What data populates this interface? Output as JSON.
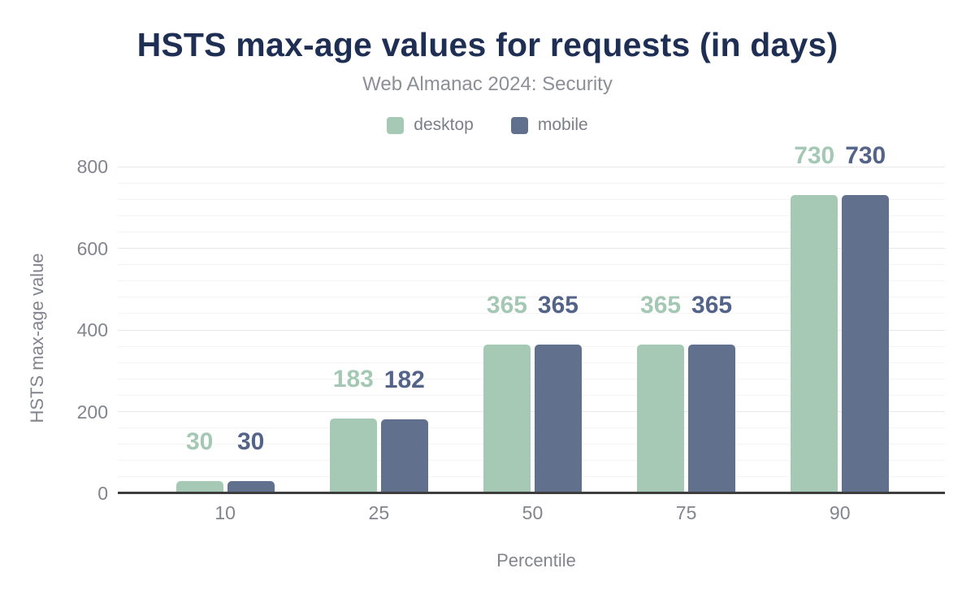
{
  "chart_data": {
    "type": "bar",
    "title": "HSTS max-age values for requests (in days)",
    "subtitle": "Web Almanac 2024: Security",
    "xlabel": "Percentile",
    "ylabel": "HSTS max-age value",
    "categories": [
      "10",
      "25",
      "50",
      "75",
      "90"
    ],
    "series": [
      {
        "name": "desktop",
        "color": "#a6c9b6",
        "label_color": "#a4c8b4",
        "values": [
          30,
          183,
          365,
          365,
          730
        ]
      },
      {
        "name": "mobile",
        "color": "#61708c",
        "label_color": "#536488",
        "values": [
          30,
          182,
          365,
          365,
          730
        ]
      }
    ],
    "ylim": [
      0,
      800
    ],
    "y_ticks": [
      0,
      200,
      400,
      600,
      800
    ],
    "minor_tick_interval": 40,
    "grid": true,
    "legend_position": "top",
    "value_labels": true
  }
}
